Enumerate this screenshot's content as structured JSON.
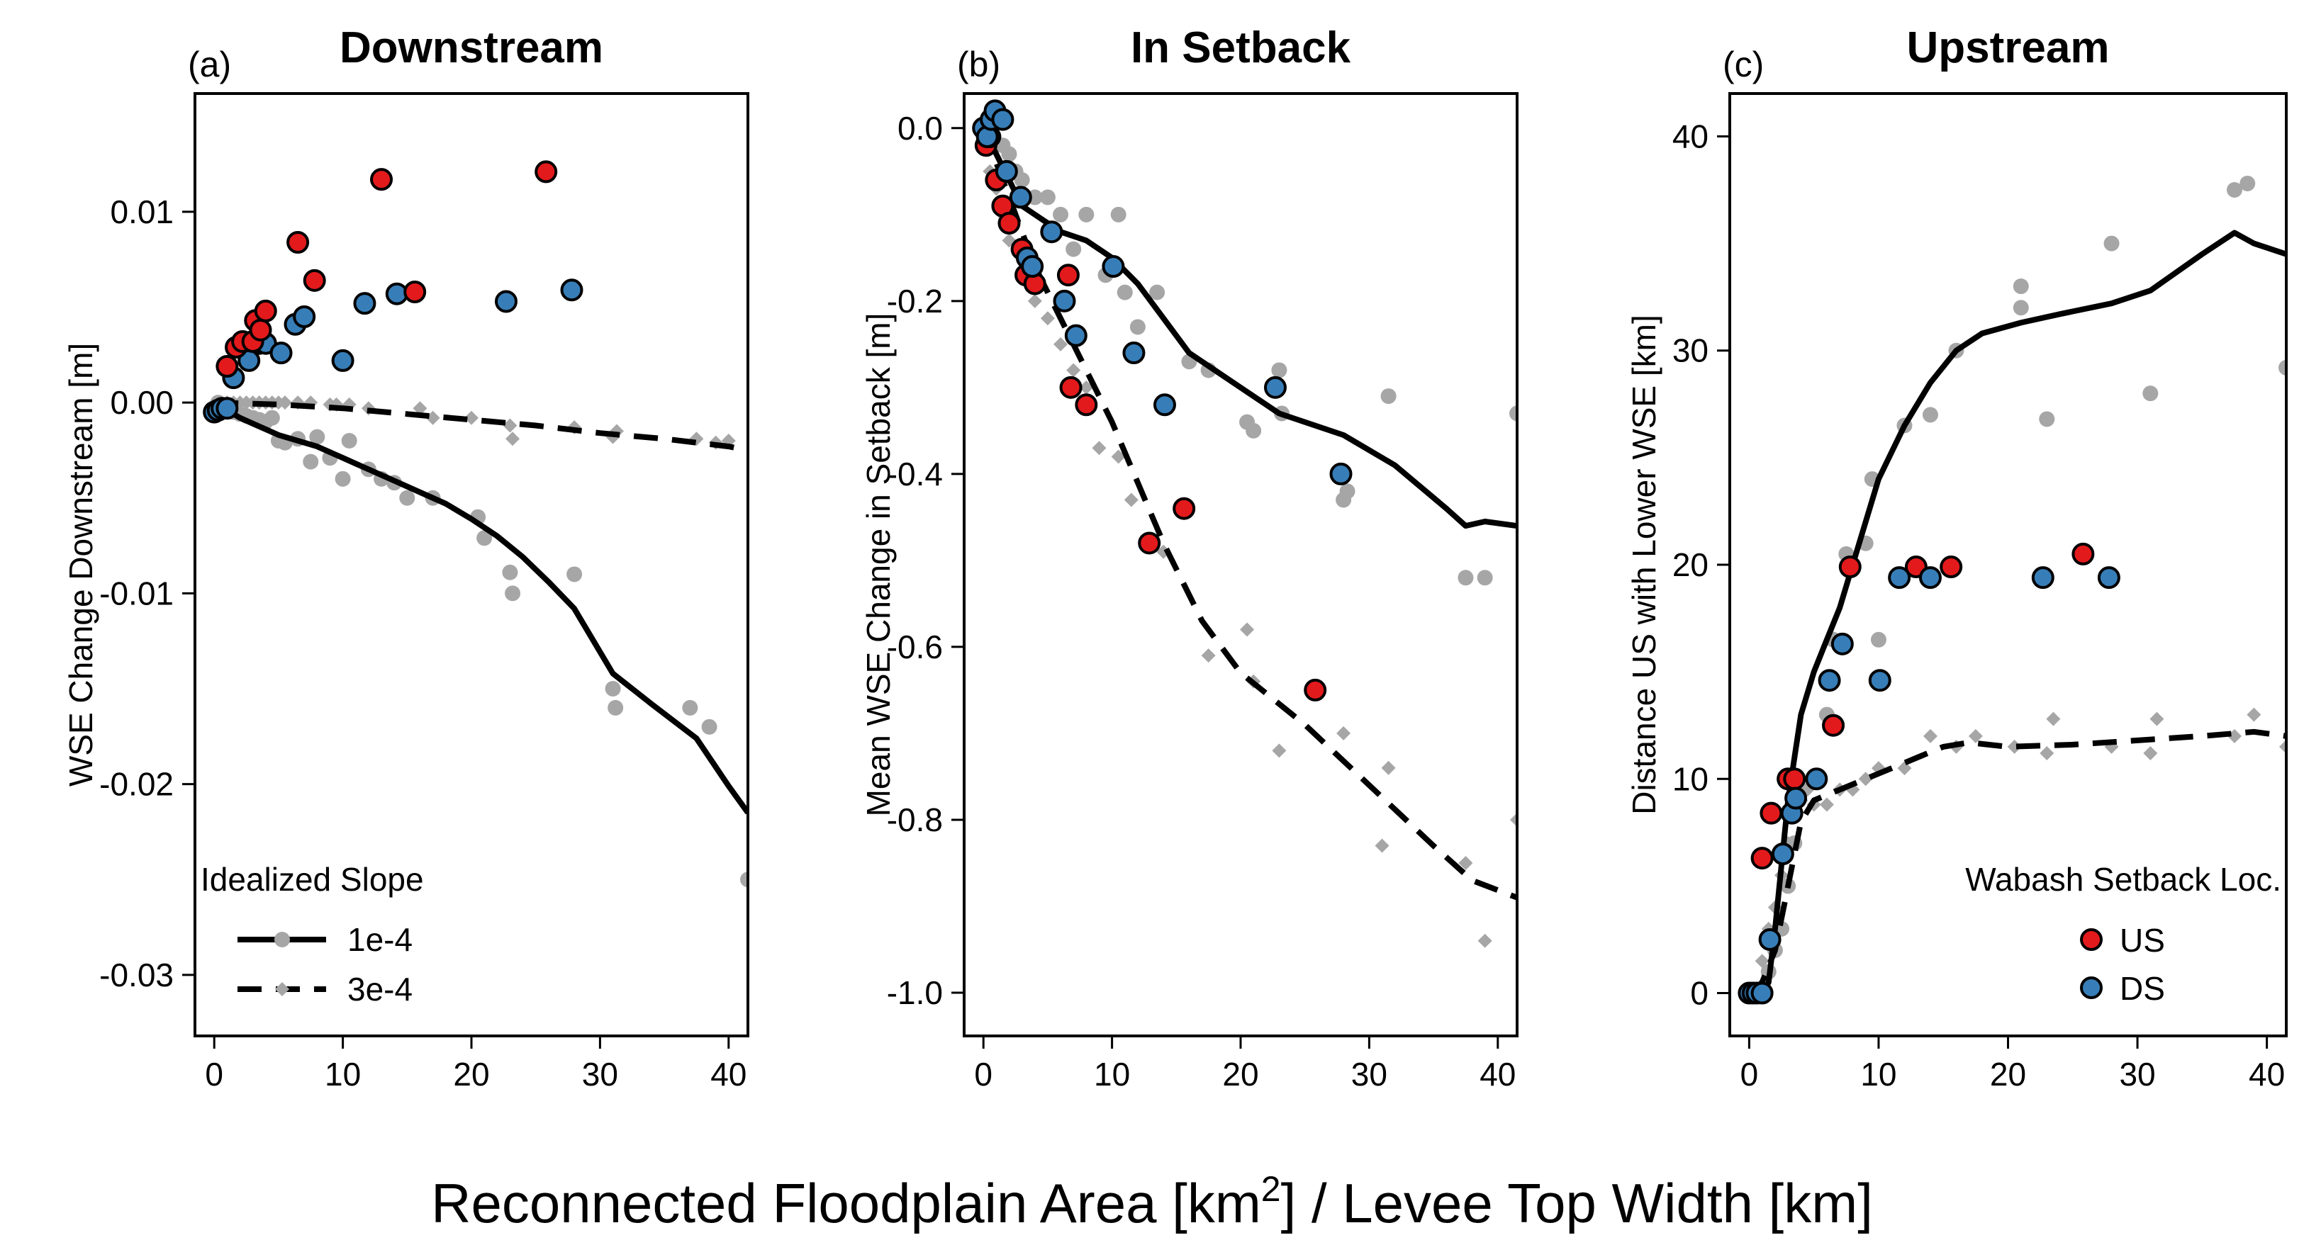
{
  "figure": {
    "xlabel_pre": "Reconnected Floodplain Area [km",
    "xlabel_sup": "2",
    "xlabel_post": "] / Levee Top Width [km]"
  },
  "colors": {
    "gray": "#a6a6a6",
    "red": "#e31a1c",
    "blue": "#377eb8",
    "line": "#000000"
  },
  "chart_data": [
    {
      "type": "scatter",
      "panel_letter": "(a)",
      "title": "Downstream",
      "ylabel": "WSE Change Downstream [m]",
      "xlim": [
        -1.5,
        41.5
      ],
      "ylim": [
        -0.0332,
        0.0162
      ],
      "xticks": [
        0,
        10,
        20,
        30,
        40
      ],
      "xtick_labels": [
        "0",
        "10",
        "20",
        "30",
        "40"
      ],
      "yticks": [
        -0.03,
        -0.02,
        -0.01,
        0.0,
        0.01
      ],
      "ytick_labels": [
        "-0.03",
        "-0.02",
        "-0.01",
        "0.00",
        "0.01"
      ],
      "legend": {
        "title": "Idealized Slope",
        "entries": [
          {
            "label": "1e-4",
            "dash": "solid-long",
            "marker": "circle"
          },
          {
            "label": "3e-4",
            "dash": "short",
            "marker": "diamond"
          }
        ]
      },
      "series": [
        {
          "kind": "line",
          "dash": "solid",
          "x": [
            0,
            1,
            2,
            3,
            4,
            5,
            6,
            7,
            8,
            9,
            10,
            11,
            12,
            14,
            16,
            18,
            20,
            22,
            24,
            26,
            28,
            31,
            34,
            37.5,
            40,
            41.5
          ],
          "y": [
            0,
            -0.0004,
            -0.0008,
            -0.0011,
            -0.0014,
            -0.0017,
            -0.0019,
            -0.0021,
            -0.0023,
            -0.0026,
            -0.0029,
            -0.0032,
            -0.0035,
            -0.0041,
            -0.0047,
            -0.0053,
            -0.0061,
            -0.007,
            -0.0081,
            -0.0094,
            -0.0108,
            -0.0142,
            -0.0158,
            -0.0176,
            -0.0201,
            -0.0215
          ]
        },
        {
          "kind": "line",
          "dash": "dashed",
          "x": [
            0,
            5,
            10,
            15,
            20,
            25,
            30,
            35,
            40,
            41.5
          ],
          "y": [
            0,
            -0.0001,
            -0.0003,
            -0.0006,
            -0.0009,
            -0.0012,
            -0.0016,
            -0.0019,
            -0.0023,
            -0.0025
          ]
        },
        {
          "kind": "points",
          "marker": "circle",
          "color": "gray",
          "x": [
            0.3,
            0.6,
            1,
            1.5,
            2,
            2.5,
            3,
            3.5,
            4,
            4.5,
            5,
            5.5,
            6.5,
            7.5,
            8,
            9,
            10,
            10.5,
            12,
            13,
            14,
            15,
            17,
            20.5,
            21,
            23,
            23.2,
            28,
            31,
            31.2,
            37,
            38.5,
            41.5
          ],
          "y": [
            0,
            -0.0002,
            -0.0004,
            -0.0005,
            -0.0006,
            -0.0007,
            -0.0008,
            -0.0009,
            -0.001,
            -0.0008,
            -0.002,
            -0.0021,
            -0.0019,
            -0.0031,
            -0.0018,
            -0.0029,
            -0.004,
            -0.002,
            -0.0035,
            -0.004,
            -0.0042,
            -0.005,
            -0.005,
            -0.006,
            -0.0071,
            -0.0089,
            -0.01,
            -0.009,
            -0.015,
            -0.016,
            -0.016,
            -0.017,
            -0.025
          ]
        },
        {
          "kind": "points",
          "marker": "diamond",
          "color": "gray",
          "x": [
            0.5,
            1,
            1.5,
            2,
            2.5,
            3,
            3.5,
            4,
            4.5,
            5,
            5.5,
            6.5,
            7.5,
            9,
            9.5,
            10.5,
            12,
            16,
            17,
            20,
            23,
            23.2,
            28,
            31,
            31.3,
            37.5,
            39,
            40
          ],
          "y": [
            0,
            0,
            0,
            0,
            0,
            0,
            0,
            0,
            0,
            0,
            0,
            0,
            0,
            -0.0001,
            -0.0001,
            -0.0001,
            -0.0003,
            -0.0003,
            -0.0008,
            -0.0008,
            -0.0012,
            -0.0019,
            -0.0013,
            -0.0018,
            -0.0015,
            -0.0019,
            -0.0021,
            -0.002
          ]
        },
        {
          "kind": "points",
          "marker": "circle-outlined",
          "color": "blue",
          "x": [
            0,
            0.3,
            0.6,
            1,
            1.5,
            2.7,
            3.5,
            4,
            5.2,
            6.3,
            7,
            10,
            11.7,
            14.2,
            22.7,
            27.8
          ],
          "y": [
            -0.0005,
            -0.0004,
            -0.0003,
            -0.0003,
            0.0013,
            0.0022,
            0.0031,
            0.0031,
            0.0026,
            0.0041,
            0.0045,
            0.0022,
            0.0052,
            0.0057,
            0.0053,
            0.0059
          ]
        },
        {
          "kind": "points",
          "marker": "circle-outlined",
          "color": "red",
          "x": [
            1,
            1.7,
            2.2,
            3,
            3.2,
            3.6,
            4,
            6.5,
            7.8,
            13,
            15.6,
            25.8
          ],
          "y": [
            0.0019,
            0.0029,
            0.0032,
            0.0032,
            0.0043,
            0.0038,
            0.0048,
            0.0084,
            0.0064,
            0.0117,
            0.0058,
            0.0121
          ]
        }
      ]
    },
    {
      "type": "scatter",
      "panel_letter": "(b)",
      "title": "In Setback",
      "ylabel": "Mean WSE Change in Setback [m]",
      "xlim": [
        -1.5,
        41.5
      ],
      "ylim": [
        -1.05,
        0.04
      ],
      "xticks": [
        0,
        10,
        20,
        30,
        40
      ],
      "xtick_labels": [
        "0",
        "10",
        "20",
        "30",
        "40"
      ],
      "yticks": [
        -1.0,
        -0.8,
        -0.6,
        -0.4,
        -0.2,
        0.0
      ],
      "ytick_labels": [
        "-1.0",
        "-0.8",
        "-0.6",
        "-0.4",
        "-0.2",
        "0.0"
      ],
      "series": [
        {
          "kind": "line",
          "dash": "solid",
          "x": [
            0,
            1,
            2,
            3,
            4,
            5,
            6,
            8,
            10,
            12,
            14,
            16,
            18,
            20,
            23,
            28,
            32,
            36,
            37.5,
            39,
            41.5
          ],
          "y": [
            0,
            -0.03,
            -0.06,
            -0.09,
            -0.1,
            -0.11,
            -0.12,
            -0.13,
            -0.15,
            -0.18,
            -0.22,
            -0.26,
            -0.28,
            -0.3,
            -0.33,
            -0.355,
            -0.39,
            -0.44,
            -0.46,
            -0.455,
            -0.46
          ]
        },
        {
          "kind": "line",
          "dash": "dashed",
          "x": [
            0,
            1,
            2,
            3,
            4,
            5,
            6,
            8,
            10,
            12,
            14,
            17,
            20,
            25,
            30,
            35,
            38,
            41.5
          ],
          "y": [
            0,
            -0.04,
            -0.08,
            -0.12,
            -0.16,
            -0.19,
            -0.22,
            -0.28,
            -0.34,
            -0.41,
            -0.48,
            -0.57,
            -0.63,
            -0.69,
            -0.76,
            -0.83,
            -0.87,
            -0.89
          ]
        },
        {
          "kind": "points",
          "marker": "circle",
          "color": "gray",
          "x": [
            0.4,
            0.8,
            1.5,
            2,
            2.5,
            3,
            4,
            5,
            6,
            7,
            8,
            9.5,
            10.5,
            11,
            12,
            13.5,
            16,
            17.5,
            20.5,
            21,
            23,
            23.2,
            28,
            28.3,
            31.5,
            37.5,
            39,
            41.5
          ],
          "y": [
            0,
            -0.01,
            -0.02,
            -0.03,
            -0.05,
            -0.06,
            -0.08,
            -0.08,
            -0.1,
            -0.14,
            -0.1,
            -0.17,
            -0.1,
            -0.19,
            -0.23,
            -0.19,
            -0.27,
            -0.28,
            -0.34,
            -0.35,
            -0.28,
            -0.33,
            -0.43,
            -0.42,
            -0.31,
            -0.52,
            -0.52,
            -0.33
          ]
        },
        {
          "kind": "points",
          "marker": "diamond",
          "color": "gray",
          "x": [
            0.5,
            1,
            1.5,
            2,
            3,
            4,
            5,
            6,
            7,
            8,
            9,
            10.5,
            11.5,
            14,
            17.5,
            20.5,
            21,
            23,
            28,
            31,
            31.5,
            37.5,
            39,
            41.5
          ],
          "y": [
            -0.05,
            -0.07,
            -0.1,
            -0.13,
            -0.17,
            -0.2,
            -0.22,
            -0.25,
            -0.28,
            -0.3,
            -0.37,
            -0.38,
            -0.43,
            -0.49,
            -0.61,
            -0.58,
            -0.64,
            -0.72,
            -0.7,
            -0.83,
            -0.74,
            -0.85,
            -0.94,
            -0.8
          ]
        },
        {
          "kind": "points",
          "marker": "circle-outlined",
          "color": "red",
          "x": [
            0.2,
            0.5,
            1,
            1.5,
            2,
            3,
            3.3,
            4,
            6.6,
            6.8,
            8,
            12.9,
            15.6,
            25.8
          ],
          "y": [
            -0.02,
            -0.01,
            -0.06,
            -0.09,
            -0.11,
            -0.14,
            -0.17,
            -0.18,
            -0.17,
            -0.3,
            -0.32,
            -0.48,
            -0.44,
            -0.65
          ]
        },
        {
          "kind": "points",
          "marker": "circle-outlined",
          "color": "blue",
          "x": [
            0,
            0.3,
            0.6,
            0.9,
            1.5,
            1.8,
            2.9,
            3.4,
            3.8,
            5.3,
            6.3,
            7.2,
            10.1,
            11.7,
            14.1,
            22.7,
            27.8
          ],
          "y": [
            0,
            -0.01,
            0.01,
            0.02,
            0.01,
            -0.05,
            -0.08,
            -0.15,
            -0.16,
            -0.12,
            -0.2,
            -0.24,
            -0.16,
            -0.26,
            -0.32,
            -0.3,
            -0.4
          ]
        }
      ]
    },
    {
      "type": "scatter",
      "panel_letter": "(c)",
      "title": "Upstream",
      "ylabel": "Distance US with Lower WSE [km]",
      "xlim": [
        -1.5,
        41.5
      ],
      "ylim": [
        -2,
        42
      ],
      "xticks": [
        0,
        10,
        20,
        30,
        40
      ],
      "xtick_labels": [
        "0",
        "10",
        "20",
        "30",
        "40"
      ],
      "yticks": [
        0,
        10,
        20,
        30,
        40
      ],
      "ytick_labels": [
        "0",
        "10",
        "20",
        "30",
        "40"
      ],
      "legend": {
        "title": "Wabash Setback Loc.",
        "entries": [
          {
            "label": "US",
            "color": "red"
          },
          {
            "label": "DS",
            "color": "blue"
          }
        ]
      },
      "series": [
        {
          "kind": "line",
          "dash": "solid",
          "x": [
            0,
            1,
            1.5,
            2,
            2.5,
            3,
            3.5,
            4,
            5,
            6,
            7,
            8,
            10,
            12,
            14,
            16,
            18,
            21,
            24,
            28,
            31,
            35,
            37.5,
            39,
            41.5
          ],
          "y": [
            0,
            0,
            0.5,
            3,
            6,
            9,
            11,
            13,
            15,
            16.5,
            18,
            20,
            24,
            26.5,
            28.5,
            30,
            30.8,
            31.3,
            31.7,
            32.2,
            32.8,
            34.5,
            35.5,
            35,
            34.5
          ]
        },
        {
          "kind": "line",
          "dash": "dashed",
          "x": [
            0,
            1,
            2,
            3,
            4,
            5,
            7,
            9,
            11,
            13,
            15,
            17,
            20,
            25,
            30,
            35,
            39,
            41.5
          ],
          "y": [
            0,
            0.5,
            2,
            5,
            8,
            9,
            9.5,
            10,
            10.5,
            11,
            11.5,
            11.7,
            11.5,
            11.6,
            11.8,
            12,
            12.2,
            12
          ]
        },
        {
          "kind": "points",
          "marker": "circle",
          "color": "gray",
          "x": [
            0.5,
            1,
            1.5,
            2,
            2.5,
            3,
            3.5,
            4,
            5,
            6,
            6.5,
            7.5,
            9,
            9.5,
            10,
            12,
            14,
            16,
            21,
            21,
            23,
            28,
            31,
            37.5,
            38.5,
            41.5
          ],
          "y": [
            0,
            0,
            1,
            2,
            3,
            5,
            7,
            9.5,
            10,
            13,
            16.5,
            20.5,
            21,
            24,
            16.5,
            26.5,
            27,
            30,
            32,
            33,
            26.8,
            35,
            28,
            37.5,
            37.8,
            29.2
          ]
        },
        {
          "kind": "points",
          "marker": "diamond",
          "color": "gray",
          "x": [
            0.5,
            1,
            1.5,
            2,
            2.5,
            3,
            3.5,
            4,
            4.5,
            5,
            6,
            7,
            8,
            9,
            10,
            12,
            14,
            16,
            17.5,
            20.5,
            23,
            23.5,
            28,
            31,
            31.5,
            37.5,
            39,
            41.5
          ],
          "y": [
            0,
            1.5,
            3,
            4,
            5.5,
            7,
            8.5,
            9,
            9.5,
            8.8,
            8.8,
            9.5,
            9.5,
            10,
            10.5,
            10.5,
            12,
            11.5,
            12,
            11.5,
            11.2,
            12.8,
            11.5,
            11.2,
            12.8,
            12,
            13,
            11.5
          ]
        },
        {
          "kind": "points",
          "marker": "circle-outlined",
          "color": "red",
          "x": [
            1,
            1.7,
            3,
            3.5,
            6.5,
            7.8,
            12.9,
            15.6,
            25.8
          ],
          "y": [
            6.3,
            8.4,
            10,
            10,
            12.5,
            19.9,
            19.9,
            19.9,
            20.5
          ]
        },
        {
          "kind": "points",
          "marker": "circle-outlined",
          "color": "blue",
          "x": [
            0,
            0.3,
            0.6,
            1,
            1.6,
            2.6,
            3.3,
            3.6,
            5.2,
            6.2,
            7.2,
            10.1,
            11.6,
            14,
            22.7,
            27.8
          ],
          "y": [
            0,
            0,
            0,
            0,
            2.5,
            6.5,
            8.4,
            9.1,
            10,
            14.6,
            16.3,
            14.6,
            19.4,
            19.4,
            19.4,
            19.4
          ]
        }
      ]
    }
  ]
}
